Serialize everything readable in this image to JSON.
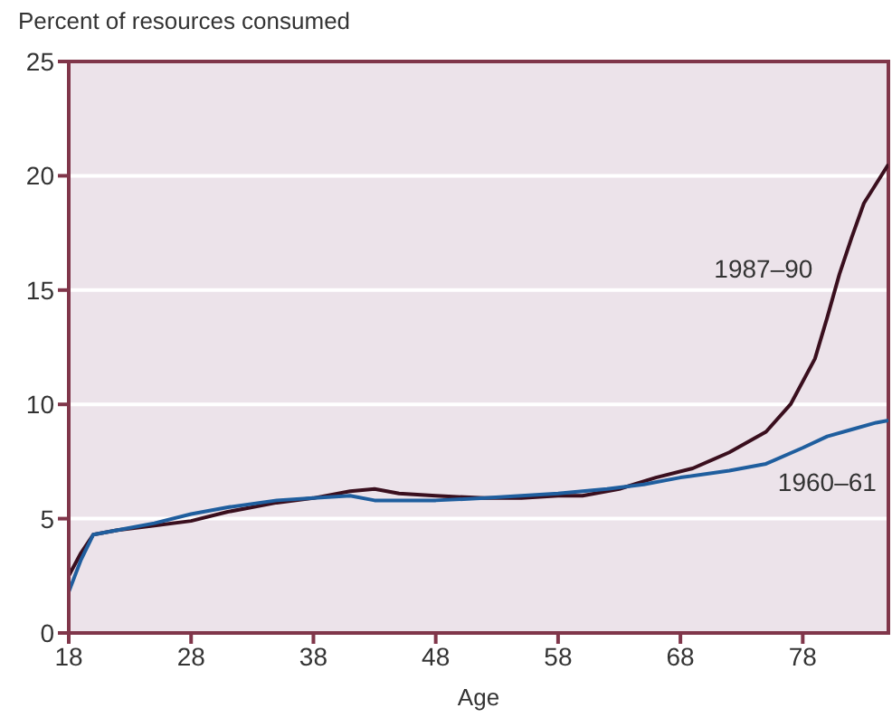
{
  "chart_data": {
    "type": "line",
    "ylabel": "Percent of resources consumed",
    "xlabel": "Age",
    "xlim": [
      18,
      85
    ],
    "xticks": [
      18,
      28,
      38,
      48,
      58,
      68,
      78
    ],
    "ylim": [
      0,
      25
    ],
    "yticks": [
      0,
      5,
      10,
      15,
      20,
      25
    ],
    "grid": "y",
    "marker": "none",
    "line_style": "solid",
    "series": [
      {
        "name": "1987–90",
        "color": "#3a0f1e",
        "x": [
          18,
          19,
          20,
          22,
          25,
          28,
          31,
          35,
          38,
          41,
          43,
          45,
          48,
          52,
          55,
          58,
          60,
          63,
          66,
          69,
          72,
          75,
          77,
          79,
          80,
          81,
          82,
          83,
          85
        ],
        "values": [
          2.5,
          3.5,
          4.3,
          4.5,
          4.7,
          4.9,
          5.3,
          5.7,
          5.9,
          6.2,
          6.3,
          6.1,
          6.0,
          5.9,
          5.9,
          6.0,
          6.0,
          6.3,
          6.8,
          7.2,
          7.9,
          8.8,
          10,
          12,
          13.8,
          15.7,
          17.3,
          18.8,
          20.5
        ]
      },
      {
        "name": "1960–61",
        "color": "#1f5e9e",
        "x": [
          18,
          19,
          20,
          22,
          25,
          28,
          31,
          35,
          38,
          41,
          43,
          48,
          52,
          55,
          58,
          62,
          65,
          68,
          72,
          75,
          78,
          80,
          82,
          84,
          85
        ],
        "values": [
          1.8,
          3.2,
          4.3,
          4.5,
          4.8,
          5.2,
          5.5,
          5.8,
          5.9,
          6.0,
          5.8,
          5.8,
          5.9,
          6.0,
          6.1,
          6.3,
          6.5,
          6.8,
          7.1,
          7.4,
          8.1,
          8.6,
          8.9,
          9.2,
          9.3
        ]
      }
    ]
  }
}
